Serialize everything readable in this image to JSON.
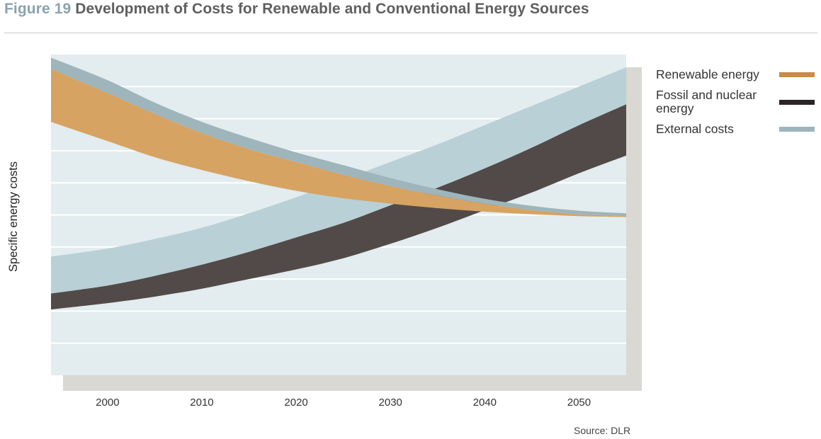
{
  "figure": {
    "number": "Figure 19",
    "title": "Development of Costs for Renewable and Conventional Energy Sources",
    "source": "Source: DLR"
  },
  "colors": {
    "renewable": "#d6a362",
    "renewable_legend": "#c98b42",
    "fossil": "#524a48",
    "fossil_legend": "#2b2325",
    "external": "#b9d0d6",
    "external_legend": "#9db5bb",
    "plot_bg": "#e3ecee",
    "shadow": "#d9d8d2",
    "grid": "#ffffff"
  },
  "chart_data": {
    "type": "area",
    "title": "Development of Costs for Renewable and Conventional Energy Sources",
    "xlabel": "",
    "ylabel": "Specific energy costs",
    "x_ticks": [
      2000,
      2010,
      2020,
      2030,
      2040,
      2050
    ],
    "xlim": [
      1994,
      2055
    ],
    "ylim": [
      0,
      100
    ],
    "grid": true,
    "y_tick_labels": false,
    "legend_position": "right",
    "x": [
      1994,
      2000,
      2005,
      2010,
      2015,
      2020,
      2025,
      2030,
      2035,
      2040,
      2045,
      2050,
      2055
    ],
    "series": [
      {
        "name": "Renewable energy",
        "lower": [
          79,
          73,
          68,
          64,
          60.5,
          57.5,
          55.2,
          53.5,
          52.1,
          51,
          50.2,
          49.6,
          49.3
        ],
        "upper": [
          95.5,
          88,
          81.5,
          75.5,
          70.5,
          66.5,
          62.5,
          59,
          56,
          53.5,
          51.5,
          50.2,
          49.6
        ]
      },
      {
        "name": "External costs",
        "lower": [
          95.5,
          88,
          81.5,
          75.5,
          70.5,
          66.5,
          62.5,
          59,
          56,
          53.5,
          51.5,
          50.2,
          49.6
        ],
        "upper": [
          99,
          92,
          85,
          79,
          74,
          69.5,
          65.5,
          61.5,
          58,
          55,
          52.8,
          51.3,
          50.5
        ]
      },
      {
        "name": "Fossil and nuclear energy",
        "lower": [
          20.5,
          22.5,
          24.5,
          27,
          30,
          33,
          36.5,
          41,
          46,
          51.5,
          57,
          63,
          68.5
        ]
      },
      {
        "name": "External costs",
        "lower": [
          25.5,
          28,
          31,
          34.5,
          38.5,
          43,
          47.5,
          53,
          58.5,
          64.5,
          71,
          78,
          84.5
        ],
        "upper": [
          37,
          39.5,
          42.5,
          46,
          50.5,
          55.5,
          61,
          66.5,
          72,
          78,
          84,
          90,
          96
        ]
      }
    ]
  },
  "legend": {
    "items": [
      {
        "label": "Renewable energy",
        "color_key": "renewable_legend"
      },
      {
        "label": "Fossil and nuclear energy",
        "color_key": "fossil_legend"
      },
      {
        "label": "External costs",
        "color_key": "external_legend"
      }
    ]
  }
}
